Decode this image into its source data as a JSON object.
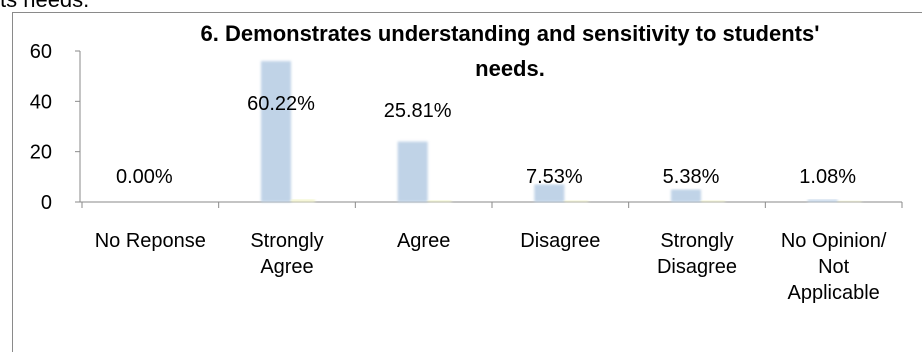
{
  "cutoff_text": "ts needs.",
  "chart_data": {
    "type": "bar",
    "title": "6. Demonstrates understanding and sensitivity to students' needs.",
    "categories": [
      [
        "No Reponse"
      ],
      [
        "Strongly",
        "Agree"
      ],
      [
        "Agree"
      ],
      [
        "Disagree"
      ],
      [
        "Strongly",
        "Disagree"
      ],
      [
        "No Opinion/",
        "Not",
        "Applicable"
      ]
    ],
    "series": [
      {
        "values": [
          0,
          56,
          24,
          7,
          5,
          1
        ],
        "color": "#c0d3e7"
      },
      {
        "values": [
          0,
          0.6,
          0.3,
          0.2,
          0.2,
          0.1
        ],
        "color": "#f1f3c4"
      }
    ],
    "data_labels": [
      "0.00%",
      "60.22%",
      "25.81%",
      "7.53%",
      "5.38%",
      "1.08%"
    ],
    "yticks": [
      0,
      20,
      40,
      60
    ],
    "ylim": [
      0,
      60
    ],
    "grid": false,
    "legend": "none"
  }
}
